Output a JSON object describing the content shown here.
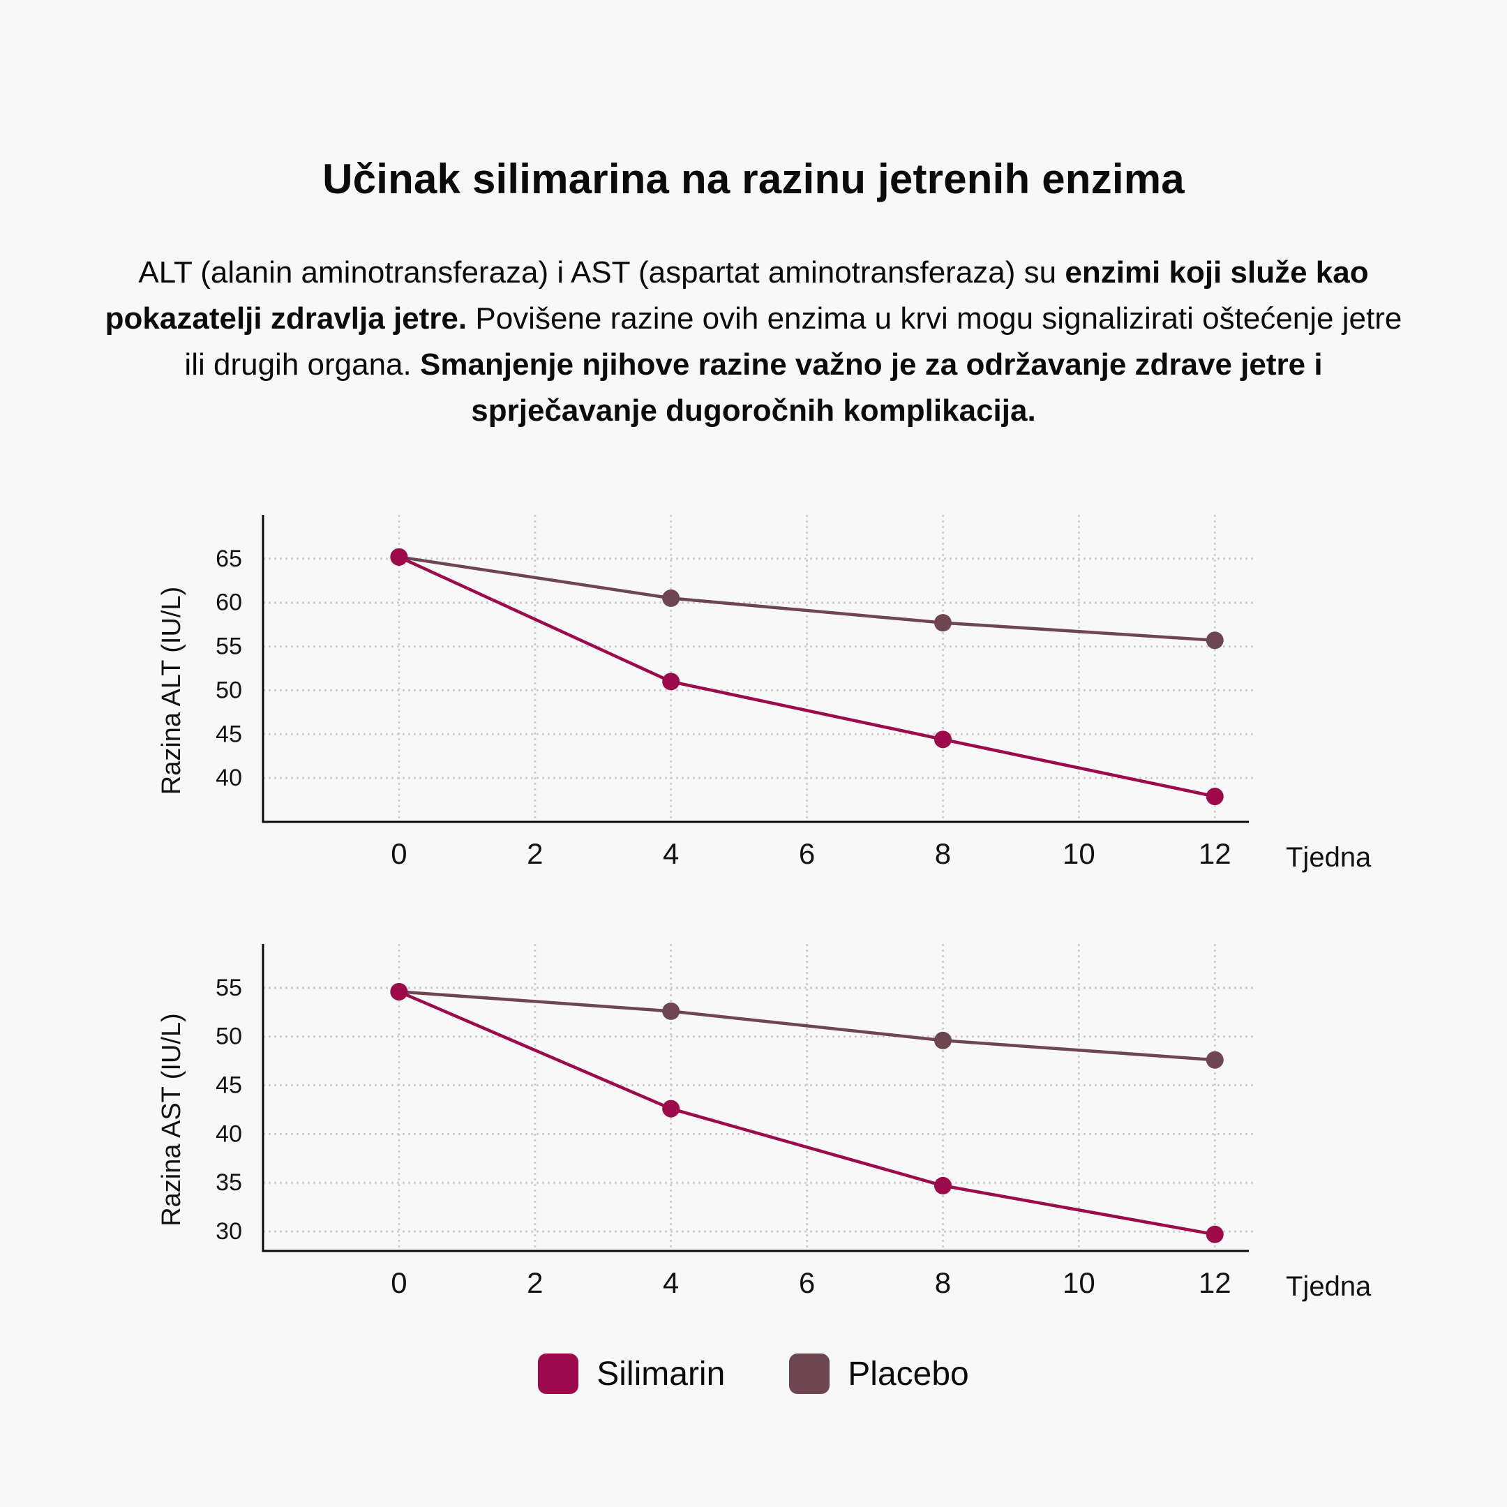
{
  "title": "Učinak silimarina na razinu jetrenih enzima",
  "intro": {
    "p1": "ALT (alanin aminotransferaza) i AST (aspartat aminotransferaza) su ",
    "b1": "enzimi koji služe kao pokazatelji zdravlja jetre.",
    "p2": " Povišene razine ovih enzima u krvi mogu signalizirati oštećenje jetre ili drugih organa. ",
    "b2": "Smanjenje njihove razine važno je za održavanje zdrave jetre i sprječavanje dugoročnih komplikacija."
  },
  "colors": {
    "silimarin": "#9c0a4c",
    "placebo": "#6e4651",
    "grid": "#cfcfcf",
    "axis": "#0b0b0b"
  },
  "legend": [
    {
      "key": "silimarin",
      "label": "Silimarin"
    },
    {
      "key": "placebo",
      "label": "Placebo"
    }
  ],
  "chart_data": [
    {
      "type": "line",
      "ylabel": "Razina ALT (IU/L)",
      "xlabel": "Tjedna",
      "xticks": [
        0,
        2,
        4,
        6,
        8,
        10,
        12
      ],
      "yticks": [
        40,
        45,
        50,
        55,
        60,
        65
      ],
      "xlim": [
        -2,
        12.5
      ],
      "ylim": [
        35,
        70
      ],
      "grid": true,
      "x": [
        0,
        4,
        8,
        12
      ],
      "series": [
        {
          "name": "Silimarin",
          "key": "silimarin",
          "values": [
            65.2,
            51.0,
            44.4,
            37.9
          ]
        },
        {
          "name": "Placebo",
          "key": "placebo",
          "values": [
            65.2,
            60.5,
            57.7,
            55.7
          ]
        }
      ]
    },
    {
      "type": "line",
      "ylabel": "Razina AST (IU/L)",
      "xlabel": "Tjedna",
      "xticks": [
        0,
        2,
        4,
        6,
        8,
        10,
        12
      ],
      "yticks": [
        30,
        35,
        40,
        45,
        50,
        55
      ],
      "xlim": [
        -2,
        12.5
      ],
      "ylim": [
        28,
        59.5
      ],
      "grid": true,
      "x": [
        0,
        4,
        8,
        12
      ],
      "series": [
        {
          "name": "Silimarin",
          "key": "silimarin",
          "values": [
            54.6,
            42.6,
            34.7,
            29.7
          ]
        },
        {
          "name": "Placebo",
          "key": "placebo",
          "values": [
            54.6,
            52.6,
            49.6,
            47.6
          ]
        }
      ]
    }
  ]
}
